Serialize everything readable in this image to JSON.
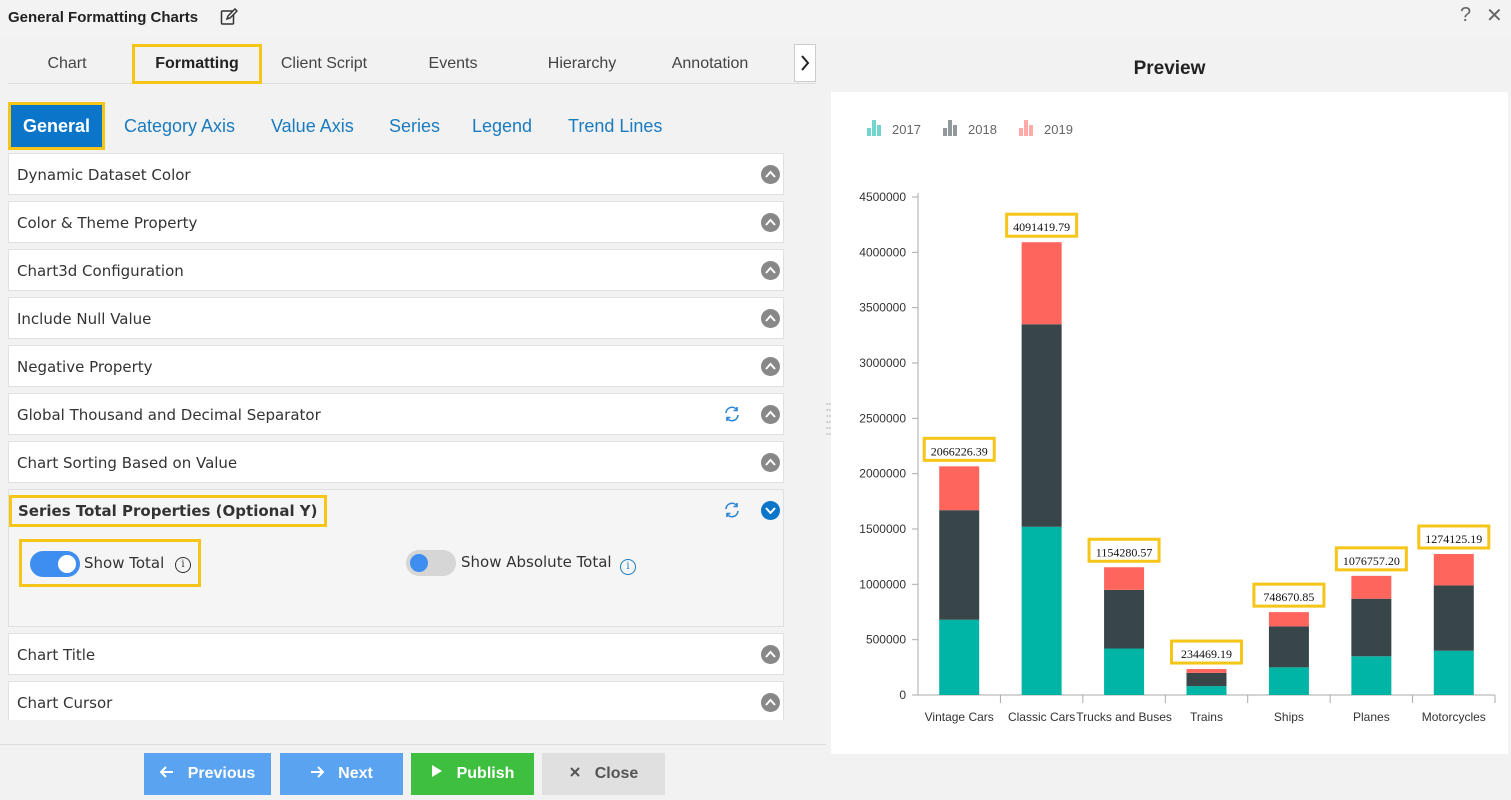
{
  "window": {
    "title": "General Formatting Charts",
    "help": "?",
    "close": "✕"
  },
  "top_tabs": [
    "Chart",
    "Formatting",
    "Client Script",
    "Events",
    "Hierarchy",
    "Annotation"
  ],
  "top_tabs_active": "Formatting",
  "sub_tabs": [
    "General",
    "Category Axis",
    "Value Axis",
    "Series",
    "Legend",
    "Trend Lines"
  ],
  "sub_tabs_active": "General",
  "sections": {
    "s1": "Dynamic Dataset Color",
    "s2": "Color & Theme Property",
    "s3": "Chart3d Configuration",
    "s4": "Include Null Value",
    "s5": "Negative Property",
    "s6": "Global Thousand and Decimal Separator",
    "s7": "Chart Sorting Based on Value",
    "s8": "Series Total Properties (Optional Y)",
    "s9": "Chart Title",
    "s10": "Chart Cursor"
  },
  "series_total": {
    "show_total_label": "Show Total",
    "show_total_on": true,
    "show_absolute_total_label": "Show Absolute Total",
    "show_absolute_total_on": false
  },
  "buttons": {
    "previous": "Previous",
    "next": "Next",
    "publish": "Publish",
    "close": "Close"
  },
  "preview": {
    "title": "Preview"
  },
  "colors": {
    "accent": "#0b75c9",
    "highlight": "#f5c518",
    "series_2017": "#00b5a5",
    "series_2018": "#38464a",
    "series_2019": "#fe655d"
  },
  "chart_data": {
    "type": "bar",
    "stacked": true,
    "categories": [
      "Vintage Cars",
      "Classic Cars",
      "Trucks and Buses",
      "Trains",
      "Ships",
      "Planes",
      "Motorcycles"
    ],
    "series": [
      {
        "name": "2017",
        "values": [
          680000,
          1520000,
          420000,
          80000,
          250000,
          350000,
          400000
        ]
      },
      {
        "name": "2018",
        "values": [
          990000,
          1830000,
          530000,
          120000,
          370000,
          520000,
          590000
        ]
      },
      {
        "name": "2019",
        "values": [
          396226.39,
          741419.79,
          204280.57,
          34469.19,
          128670.85,
          206757.2,
          284125.19
        ]
      }
    ],
    "totals": [
      "2066226.39",
      "4091419.79",
      "1154280.57",
      "234469.19",
      "748670.85",
      "1076757.20",
      "1274125.19"
    ],
    "ylim": [
      0,
      4500000
    ],
    "yticks": [
      "0",
      "500000",
      "1000000",
      "1500000",
      "2000000",
      "2500000",
      "3000000",
      "3500000",
      "4000000",
      "4500000"
    ],
    "legend_placement": "top-left",
    "grid": false
  }
}
